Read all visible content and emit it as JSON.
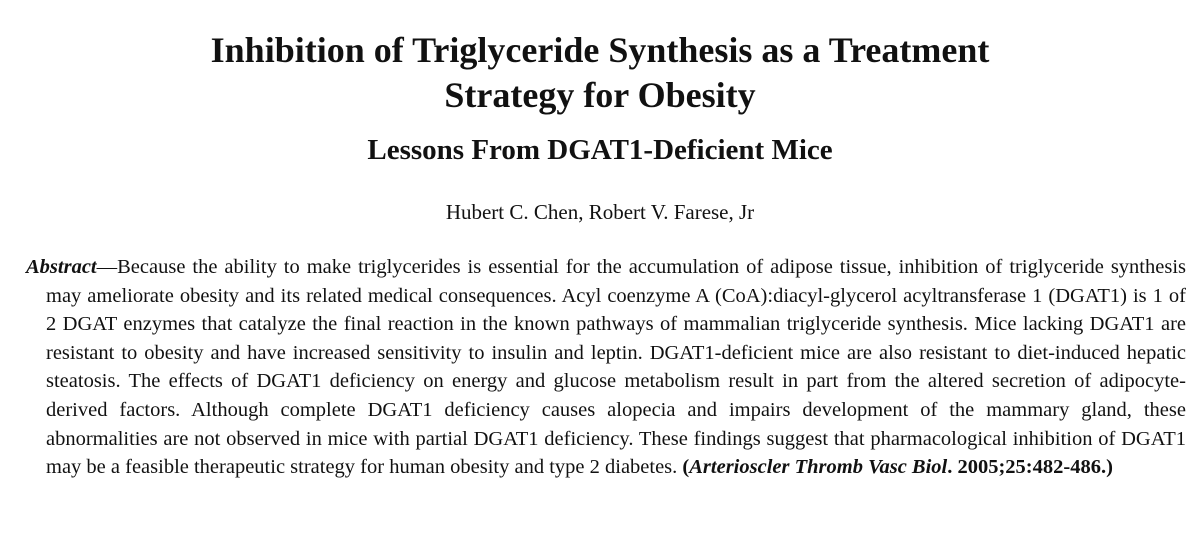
{
  "paper": {
    "title_line1": "Inhibition of Triglyceride Synthesis as a Treatment",
    "title_line2": "Strategy for Obesity",
    "subtitle": "Lessons From DGAT1-Deficient Mice",
    "authors": "Hubert C. Chen, Robert V. Farese, Jr",
    "abstract": {
      "label": "Abstract",
      "body": "—Because the ability to make triglycerides is essential for the accumulation of adipose tissue, inhibition of triglyceride synthesis may ameliorate obesity and its related medical consequences. Acyl coenzyme A (CoA):diacyl-glycerol acyltransferase 1 (DGAT1) is 1 of 2 DGAT enzymes that catalyze the final reaction in the known pathways of mammalian triglyceride synthesis. Mice lacking DGAT1 are resistant to obesity and have increased sensitivity to insulin and leptin. DGAT1-deficient mice are also resistant to diet-induced hepatic steatosis. The effects of DGAT1 deficiency on energy and glucose metabolism result in part from the altered secretion of adipocyte-derived factors. Although complete DGAT1 deficiency causes alopecia and impairs development of the mammary gland, these abnormalities are not observed in mice with partial DGAT1 deficiency. These findings suggest that pharmacological inhibition of DGAT1 may be a feasible therapeutic strategy for human obesity and type 2 diabetes. ",
      "citation_open": "(",
      "citation_journal": "Arterioscler Thromb Vasc Biol",
      "citation_rest": ". 2005;25:482-486.)"
    }
  }
}
